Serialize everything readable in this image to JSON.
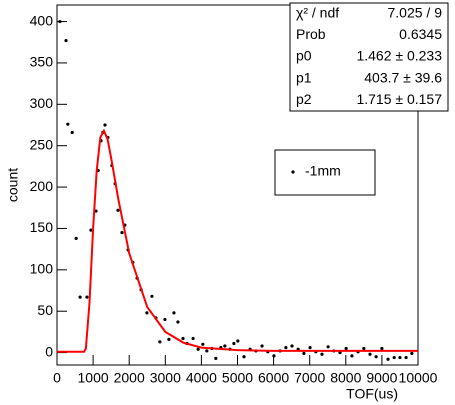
{
  "chart_data": {
    "type": "scatter",
    "x_label": "TOF(us)",
    "y_label": "count",
    "xlim": [
      0,
      10000
    ],
    "ylim": [
      -15,
      420
    ],
    "xticks": [
      0,
      1000,
      2000,
      3000,
      4000,
      5000,
      6000,
      7000,
      8000,
      9000,
      10000
    ],
    "yticks": [
      0,
      50,
      100,
      150,
      200,
      250,
      300,
      350,
      400
    ],
    "legend": "right",
    "series": [
      {
        "name": "-1mm",
        "style": "markers",
        "color": "#000000",
        "x": [
          80,
          250,
          300,
          420,
          530,
          640,
          830,
          940,
          1080,
          1140,
          1220,
          1270,
          1330,
          1410,
          1520,
          1610,
          1690,
          1800,
          1880,
          1970,
          2100,
          2220,
          2330,
          2490,
          2630,
          2740,
          2850,
          2990,
          3100,
          3240,
          3350,
          3490,
          3600,
          3770,
          3910,
          4040,
          4150,
          4290,
          4400,
          4540,
          4650,
          4790,
          4900,
          5010,
          5180,
          5350,
          5510,
          5680,
          5840,
          6010,
          6180,
          6340,
          6510,
          6680,
          6840,
          7010,
          7170,
          7340,
          7510,
          7670,
          7840,
          8010,
          8170,
          8340,
          8500,
          8670,
          8840,
          9000,
          9170,
          9340,
          9500,
          9670,
          9830
        ],
        "values": [
          400,
          377,
          276,
          266,
          138,
          67,
          67,
          148,
          171,
          220,
          256,
          266,
          275,
          260,
          226,
          204,
          172,
          145,
          154,
          124,
          109,
          90,
          76,
          48,
          68,
          42,
          13,
          40,
          16,
          48,
          37,
          17,
          11,
          17,
          4,
          10,
          2,
          5,
          -7,
          6,
          8,
          4,
          11,
          14,
          -5,
          4,
          2,
          8,
          1,
          -4,
          2,
          6,
          8,
          4,
          -1,
          6,
          1,
          -2,
          7,
          2,
          0,
          5,
          -4,
          1,
          5,
          -2,
          -5,
          5,
          -8,
          -6,
          -6,
          -6,
          -1
        ]
      },
      {
        "style": "line",
        "color": "#ff0000",
        "x": [
          0,
          750,
          800,
          900,
          1000,
          1100,
          1200,
          1300,
          1400,
          1500,
          1700,
          2000,
          2500,
          3000,
          3500,
          4000,
          5000,
          6000,
          8000,
          10000
        ],
        "values": [
          1,
          1,
          5,
          60,
          150,
          220,
          260,
          268,
          258,
          235,
          185,
          120,
          55,
          25,
          12,
          6,
          3,
          2,
          2,
          2
        ]
      }
    ],
    "stats": {
      "rows": [
        [
          "χ² / ndf",
          "7.025 / 9"
        ],
        [
          "Prob",
          "0.6345"
        ],
        [
          "p0",
          "1.462 ± 0.233"
        ],
        [
          "p1",
          "403.7 ± 39.6"
        ],
        [
          "p2",
          "1.715 ± 0.157"
        ]
      ]
    }
  }
}
